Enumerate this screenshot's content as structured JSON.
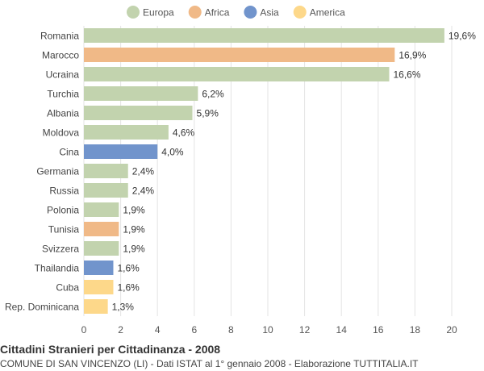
{
  "chart_data": {
    "type": "bar",
    "orientation": "horizontal",
    "title": "Cittadini Stranieri per Cittadinanza - 2008",
    "subtitle": "COMUNE DI SAN VINCENZO (LI) - Dati ISTAT al 1° gennaio 2008 - Elaborazione TUTTITALIA.IT",
    "legend": [
      {
        "name": "Europa",
        "color": "#c2d3ae"
      },
      {
        "name": "Africa",
        "color": "#f0b987"
      },
      {
        "name": "Asia",
        "color": "#7194cc"
      },
      {
        "name": "America",
        "color": "#fdd88a"
      }
    ],
    "legend_position": "top",
    "categories": [
      "Romania",
      "Marocco",
      "Ucraina",
      "Turchia",
      "Albania",
      "Moldova",
      "Cina",
      "Germania",
      "Russia",
      "Polonia",
      "Tunisia",
      "Svizzera",
      "Thailandia",
      "Cuba",
      "Rep. Dominicana"
    ],
    "values": [
      19.6,
      16.9,
      16.6,
      6.2,
      5.9,
      4.6,
      4.0,
      2.4,
      2.4,
      1.9,
      1.9,
      1.9,
      1.6,
      1.6,
      1.3
    ],
    "value_labels": [
      "19,6%",
      "16,9%",
      "16,6%",
      "6,2%",
      "5,9%",
      "4,6%",
      "4,0%",
      "2,4%",
      "2,4%",
      "1,9%",
      "1,9%",
      "1,9%",
      "1,6%",
      "1,6%",
      "1,3%"
    ],
    "groups": [
      "Europa",
      "Africa",
      "Europa",
      "Europa",
      "Europa",
      "Europa",
      "Asia",
      "Europa",
      "Europa",
      "Europa",
      "Africa",
      "Europa",
      "Asia",
      "America",
      "America"
    ],
    "xlim": [
      0,
      20
    ],
    "xticks": [
      0,
      2,
      4,
      6,
      8,
      10,
      12,
      14,
      16,
      18,
      20
    ],
    "grid": true
  }
}
